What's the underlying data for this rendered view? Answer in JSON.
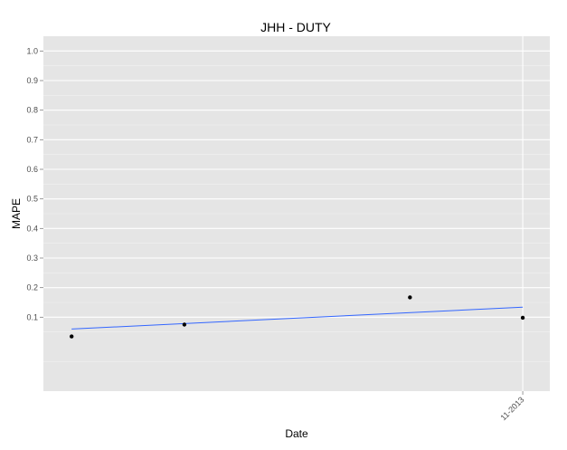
{
  "chart_data": {
    "type": "scatter",
    "title": "JHH -   DUTY",
    "xlabel": "Date",
    "ylabel": "MAPE",
    "x_tick_labels": [
      "11-2013"
    ],
    "y_tick_labels": [
      "0.1",
      "0.2",
      "0.3",
      "0.4",
      "0.5",
      "0.6",
      "0.7",
      "0.8",
      "0.9",
      "1.0"
    ],
    "ylim": [
      -0.15,
      1.05
    ],
    "grid": true,
    "legend": "none",
    "series": [
      {
        "x": [
          "07-2013",
          "08-2013",
          "10-2013",
          "11-2013"
        ],
        "values": [
          0.035,
          0.075,
          0.167,
          0.098
        ],
        "color": "#000000"
      }
    ],
    "trend_line": {
      "start": 0.06,
      "end": 0.134,
      "color": "#3366ff"
    },
    "colors": {
      "panel": "#e5e5e5",
      "grid_major": "#ffffff",
      "grid_minor": "#f2f2f2"
    }
  }
}
